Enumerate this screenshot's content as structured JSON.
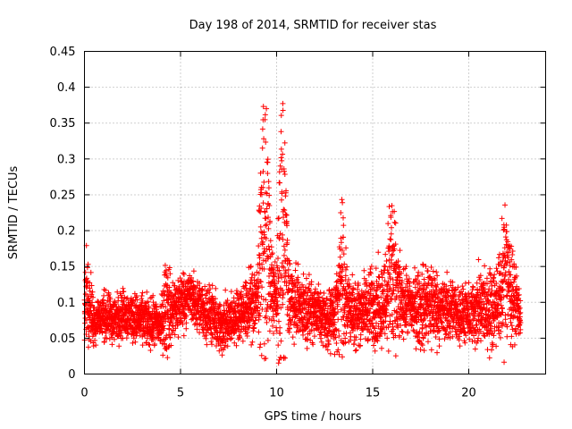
{
  "chart_data": {
    "type": "scatter",
    "title": "Day 198 of 2014, SRMTID for receiver stas",
    "xlabel": "GPS time / hours",
    "ylabel": "SRMTID / TECUs",
    "xlim": [
      0,
      24
    ],
    "ylim": [
      0,
      0.45
    ],
    "xticks": [
      0,
      5,
      10,
      15,
      20
    ],
    "yticks": [
      0,
      0.05,
      0.1,
      0.15,
      0.2,
      0.25,
      0.3,
      0.35,
      0.4,
      0.45
    ],
    "xtick_labels": [
      "0",
      "5",
      "10",
      "15",
      "20"
    ],
    "ytick_labels": [
      "0",
      "0.05",
      "0.1",
      "0.15",
      "0.2",
      "0.25",
      "0.3",
      "0.35",
      "0.4",
      "0.45"
    ],
    "grid": true,
    "marker": "+",
    "color": "#ff0000",
    "series_envelope": {
      "name": "SRMTID",
      "x": [
        0,
        0.1,
        0.5,
        1,
        1.5,
        2,
        2.5,
        3,
        3.5,
        4,
        4.3,
        4.5,
        5,
        5.5,
        6,
        6.5,
        7,
        7.5,
        8,
        8.5,
        9,
        9.4,
        9.7,
        10,
        10.3,
        10.6,
        11,
        11.5,
        12,
        12.5,
        13,
        13.4,
        13.7,
        14,
        14.5,
        15,
        15.5,
        16,
        16.5,
        17,
        17.5,
        18,
        18.5,
        19,
        19.5,
        20,
        20.5,
        21,
        21.5,
        21.9,
        22.3,
        22.7
      ],
      "mean": [
        0.08,
        0.11,
        0.075,
        0.08,
        0.075,
        0.085,
        0.08,
        0.075,
        0.07,
        0.07,
        0.1,
        0.085,
        0.1,
        0.11,
        0.09,
        0.085,
        0.065,
        0.07,
        0.085,
        0.09,
        0.11,
        0.15,
        0.13,
        0.1,
        0.14,
        0.11,
        0.1,
        0.09,
        0.09,
        0.075,
        0.08,
        0.12,
        0.1,
        0.085,
        0.09,
        0.095,
        0.1,
        0.12,
        0.1,
        0.095,
        0.09,
        0.1,
        0.09,
        0.09,
        0.085,
        0.08,
        0.09,
        0.09,
        0.1,
        0.13,
        0.11,
        0.085
      ],
      "spread": [
        0.03,
        0.06,
        0.03,
        0.03,
        0.03,
        0.03,
        0.03,
        0.03,
        0.03,
        0.03,
        0.07,
        0.04,
        0.04,
        0.03,
        0.035,
        0.035,
        0.035,
        0.035,
        0.03,
        0.04,
        0.05,
        0.2,
        0.06,
        0.04,
        0.2,
        0.06,
        0.04,
        0.04,
        0.04,
        0.035,
        0.04,
        0.09,
        0.05,
        0.045,
        0.04,
        0.05,
        0.05,
        0.1,
        0.04,
        0.04,
        0.05,
        0.06,
        0.04,
        0.04,
        0.035,
        0.035,
        0.05,
        0.05,
        0.05,
        0.09,
        0.05,
        0.03
      ],
      "points_per_hour": 190
    }
  }
}
